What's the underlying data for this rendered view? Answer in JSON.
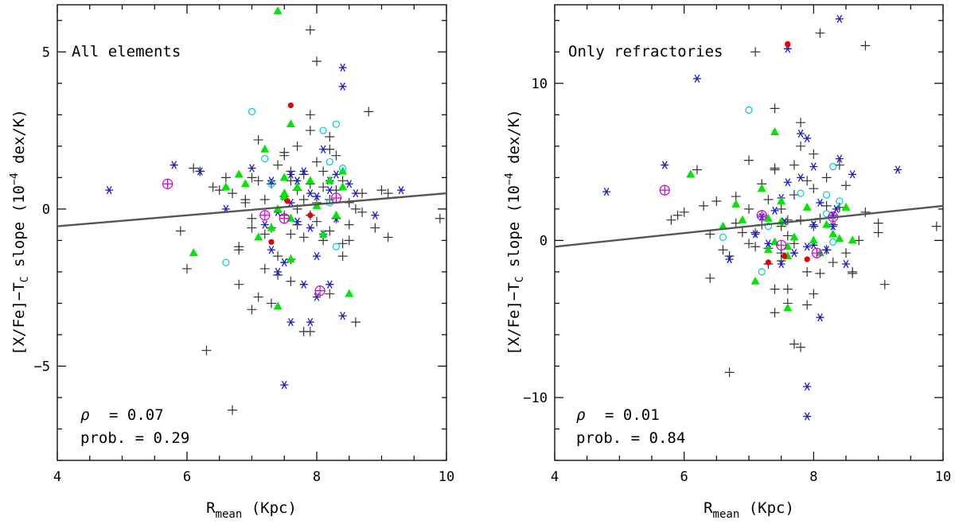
{
  "figure": {
    "ylabel_main": "[X/Fe]−T",
    "ylabel_sub": "C",
    "ylabel_rest": " slope (10",
    "ylabel_sup": "−4",
    "ylabel_end": " dex/K)",
    "xlabel_main": "R",
    "xlabel_sub": "mean",
    "xlabel_end": " (Kpc)"
  },
  "chart_data": [
    {
      "type": "scatter",
      "title": "All elements",
      "xlabel": "R_mean (Kpc)",
      "ylabel": "[X/Fe]-T_C slope (10^-4 dex/K)",
      "xlim": [
        4,
        10
      ],
      "ylim": [
        -8,
        6.5
      ],
      "xticks": [
        4,
        6,
        8,
        10
      ],
      "yticks": [
        -5,
        0,
        5
      ],
      "ytick_labels": [
        "−5",
        "0",
        "5"
      ],
      "rho_label": "ρ",
      "rho_text": "= 0.07",
      "prob_text": "prob. = 0.29",
      "fit_line": {
        "x": [
          4,
          10
        ],
        "y": [
          -0.55,
          0.5
        ]
      },
      "series": [
        {
          "name": "black crosses",
          "marker": "plus",
          "color": "#333333",
          "x": [
            5.9,
            6.1,
            6.2,
            6.4,
            6.5,
            6.6,
            6.7,
            6.8,
            6.9,
            7.0,
            7.0,
            7.1,
            7.1,
            7.2,
            7.2,
            7.3,
            7.3,
            7.4,
            7.4,
            7.5,
            7.5,
            7.5,
            7.6,
            7.6,
            7.6,
            7.7,
            7.7,
            7.7,
            7.8,
            7.8,
            7.8,
            7.9,
            7.9,
            7.9,
            8.0,
            8.0,
            8.0,
            8.1,
            8.1,
            8.1,
            8.2,
            8.2,
            8.2,
            8.3,
            8.3,
            8.4,
            8.4,
            8.5,
            8.5,
            8.6,
            8.7,
            8.8,
            9.0,
            9.1,
            9.9,
            6.3,
            6.7,
            6.8,
            7.0,
            7.3,
            7.6,
            7.8,
            7.9,
            8.6,
            7.9,
            8.0,
            6.0,
            6.8,
            7.1,
            7.2,
            7.5,
            7.7,
            8.2,
            8.4,
            8.5,
            8.7,
            8.9,
            9.1,
            7.4,
            7.9,
            8.3,
            7.0,
            6.9,
            7.6,
            8.2
          ],
          "y": [
            -0.7,
            1.3,
            1.2,
            0.7,
            0.6,
            1.0,
            0.5,
            -1.2,
            0.3,
            -0.3,
            1.0,
            2.2,
            0.9,
            -0.8,
            0.3,
            -0.6,
            0.8,
            1.4,
            -1.5,
            -0.2,
            0.4,
            1.8,
            0.9,
            -0.8,
            1.2,
            0.0,
            0.6,
            -0.5,
            1.1,
            0.3,
            -0.9,
            2.5,
            -0.2,
            0.8,
            1.5,
            -0.4,
            0.2,
            1.2,
            0.7,
            -1.0,
            0.3,
            -0.7,
            1.9,
            0.6,
            -0.3,
            0.9,
            -1.1,
            -0.5,
            0.2,
            0.0,
            0.5,
            3.1,
            0.6,
            -0.9,
            -0.3,
            -4.5,
            -6.4,
            -2.4,
            -3.2,
            -3.0,
            -2.3,
            -3.9,
            -3.9,
            -3.6,
            5.7,
            4.7,
            -1.9,
            -1.3,
            -2.8,
            -1.9,
            1.7,
            2.0,
            2.3,
            -1.5,
            -1.0,
            -0.1,
            -0.6,
            0.5,
            -2.1,
            3.0,
            1.7,
            -0.6,
            0.2,
            -1.6,
            -2.7
          ]
        },
        {
          "name": "blue asterisks",
          "marker": "asterisk",
          "color": "#1a1acc",
          "x": [
            4.8,
            5.8,
            6.2,
            6.6,
            7.0,
            7.2,
            7.3,
            7.4,
            7.4,
            7.5,
            7.5,
            7.6,
            7.6,
            7.7,
            7.7,
            7.8,
            7.8,
            7.9,
            7.9,
            8.0,
            8.0,
            8.1,
            8.1,
            8.2,
            8.2,
            8.3,
            8.3,
            8.4,
            8.4,
            8.5,
            8.6,
            8.9,
            9.3,
            7.5,
            7.6,
            7.9,
            8.4,
            8.0,
            7.3,
            8.2
          ],
          "y": [
            0.6,
            1.4,
            1.2,
            0.0,
            1.3,
            -0.5,
            0.9,
            -2.0,
            -0.1,
            -1.7,
            0.4,
            -3.6,
            1.1,
            -0.4,
            0.9,
            1.2,
            -2.4,
            -0.6,
            -3.6,
            0.4,
            -2.8,
            1.9,
            -0.8,
            -2.4,
            0.6,
            -0.3,
            1.1,
            4.5,
            3.9,
            0.8,
            0.5,
            -0.2,
            0.6,
            -5.6,
            0.2,
            0.5,
            -3.4,
            -1.5,
            -1.3,
            0.9
          ]
        },
        {
          "name": "green triangles",
          "marker": "triangle",
          "color": "#00e600",
          "x": [
            6.1,
            6.6,
            6.8,
            6.9,
            7.1,
            7.2,
            7.3,
            7.4,
            7.4,
            7.5,
            7.5,
            7.6,
            7.6,
            7.6,
            7.7,
            7.9,
            8.0,
            8.1,
            8.2,
            8.3,
            8.4,
            8.4,
            8.5,
            7.5,
            7.4
          ],
          "y": [
            -1.4,
            0.7,
            1.1,
            0.8,
            -0.9,
            1.9,
            -0.6,
            6.3,
            -3.1,
            0.5,
            1.0,
            2.7,
            -0.3,
            -1.6,
            0.7,
            0.9,
            0.1,
            -0.8,
            0.9,
            -0.2,
            1.2,
            0.7,
            -2.7,
            0.4,
            0.0
          ]
        },
        {
          "name": "cyan open circles",
          "marker": "circle-open",
          "color": "#00cccc",
          "x": [
            6.6,
            7.0,
            7.2,
            8.1,
            8.2,
            8.3,
            8.3,
            8.4,
            7.3,
            8.2
          ],
          "y": [
            -1.7,
            3.1,
            1.6,
            2.5,
            1.5,
            2.7,
            -1.2,
            1.3,
            0.8,
            0.2
          ]
        },
        {
          "name": "red dots",
          "marker": "dot",
          "color": "#e60000",
          "x": [
            7.6,
            7.3,
            7.9,
            7.55
          ],
          "y": [
            3.3,
            -1.05,
            -0.2,
            0.25
          ]
        },
        {
          "name": "magenta circled plus",
          "marker": "circle-plus",
          "color": "#cc00cc",
          "x": [
            5.7,
            7.2,
            7.5,
            8.05,
            8.3
          ],
          "y": [
            0.8,
            -0.2,
            -0.3,
            -2.6,
            0.35
          ]
        }
      ]
    },
    {
      "type": "scatter",
      "title": "Only refractories",
      "xlabel": "R_mean (Kpc)",
      "ylabel": "[X/Fe]-T_C slope (10^-4 dex/K)",
      "xlim": [
        4,
        10
      ],
      "ylim": [
        -14,
        15
      ],
      "xticks": [
        4,
        6,
        8,
        10
      ],
      "yticks": [
        -10,
        0,
        10
      ],
      "ytick_labels": [
        "−10",
        "0",
        "10"
      ],
      "rho_label": "ρ",
      "rho_text": "= 0.01",
      "prob_text": "prob. = 0.84",
      "fit_line": {
        "x": [
          4,
          10
        ],
        "y": [
          -0.4,
          2.2
        ]
      },
      "series": [
        {
          "name": "black crosses",
          "marker": "plus",
          "color": "#333333",
          "x": [
            5.8,
            5.9,
            6.0,
            6.2,
            6.3,
            6.4,
            6.5,
            6.6,
            6.7,
            6.8,
            6.9,
            7.0,
            7.0,
            7.1,
            7.1,
            7.2,
            7.2,
            7.3,
            7.3,
            7.4,
            7.4,
            7.5,
            7.5,
            7.5,
            7.6,
            7.6,
            7.7,
            7.7,
            7.8,
            7.8,
            7.9,
            7.9,
            8.0,
            8.0,
            8.1,
            8.1,
            8.2,
            8.2,
            8.3,
            8.3,
            8.4,
            8.4,
            8.5,
            8.5,
            8.6,
            8.7,
            8.8,
            9.0,
            9.1,
            9.9,
            6.4,
            6.7,
            7.0,
            7.4,
            7.4,
            7.6,
            7.8,
            7.9,
            8.0,
            8.1,
            8.8,
            7.1,
            7.4,
            7.8,
            8.0,
            7.5,
            7.6,
            7.7,
            8.2,
            8.6,
            9.0,
            6.8,
            7.3,
            7.7
          ],
          "y": [
            1.3,
            1.6,
            1.8,
            4.5,
            2.2,
            0.4,
            2.5,
            -0.6,
            -8.4,
            1.1,
            0.5,
            5.1,
            2.0,
            12.0,
            -0.4,
            3.6,
            1.0,
            -0.5,
            2.6,
            8.4,
            4.6,
            -1.3,
            2.0,
            0.9,
            -3.1,
            1.3,
            2.9,
            -6.6,
            7.5,
            1.3,
            -2.0,
            3.8,
            0.9,
            5.5,
            13.2,
            1.4,
            -0.6,
            4.0,
            1.0,
            -1.4,
            4.8,
            2.1,
            -0.8,
            3.5,
            -2.0,
            0.0,
            12.4,
            1.1,
            -2.8,
            0.9,
            -2.4,
            -1.0,
            -0.2,
            -4.6,
            -3.1,
            -4.0,
            -6.8,
            -4.1,
            -3.4,
            -2.1,
            1.8,
            0.5,
            4.5,
            6.0,
            3.3,
            -0.8,
            0.3,
            -0.2,
            2.2,
            -2.1,
            0.5,
            2.8,
            -1.5,
            4.8
          ]
        },
        {
          "name": "blue asterisks",
          "marker": "asterisk",
          "color": "#1a1acc",
          "x": [
            4.8,
            5.7,
            6.2,
            6.7,
            7.2,
            7.3,
            7.4,
            7.5,
            7.5,
            7.6,
            7.6,
            7.7,
            7.8,
            7.8,
            7.9,
            7.9,
            8.0,
            8.0,
            8.1,
            8.1,
            8.2,
            8.3,
            8.3,
            8.4,
            8.4,
            8.5,
            8.6,
            9.3,
            7.9,
            7.9,
            7.55,
            7.1,
            8.0,
            8.35
          ],
          "y": [
            3.1,
            4.8,
            10.3,
            -1.2,
            1.5,
            -0.2,
            1.9,
            -1.5,
            2.7,
            3.7,
            12.2,
            -0.8,
            6.8,
            4.0,
            6.5,
            -9.3,
            4.7,
            1.0,
            -4.9,
            2.4,
            -0.6,
            0.9,
            1.6,
            14.1,
            5.2,
            -1.5,
            4.2,
            4.5,
            -11.2,
            -0.4,
            1.2,
            0.4,
            -0.3,
            2.0
          ]
        },
        {
          "name": "green triangles",
          "marker": "triangle",
          "color": "#00e600",
          "x": [
            6.1,
            6.6,
            6.8,
            6.9,
            7.1,
            7.2,
            7.3,
            7.4,
            7.4,
            7.5,
            7.5,
            7.6,
            7.6,
            7.7,
            7.9,
            8.0,
            8.1,
            8.2,
            8.3,
            8.4,
            8.5,
            8.6,
            7.3,
            7.6
          ],
          "y": [
            4.2,
            0.9,
            2.3,
            1.3,
            -2.6,
            3.3,
            1.4,
            6.9,
            -0.1,
            2.5,
            1.2,
            -4.3,
            -1.0,
            0.2,
            2.1,
            0.0,
            -0.8,
            1.0,
            0.4,
            0.1,
            2.1,
            0.0,
            -0.6,
            -0.4
          ]
        },
        {
          "name": "cyan open circles",
          "marker": "circle-open",
          "color": "#00cccc",
          "x": [
            6.6,
            7.0,
            7.2,
            7.8,
            8.2,
            8.3,
            8.4,
            8.3,
            7.3,
            8.2
          ],
          "y": [
            0.2,
            8.3,
            -2.0,
            3.0,
            2.9,
            4.7,
            2.5,
            -0.1,
            0.9,
            1.7
          ]
        },
        {
          "name": "red dots",
          "marker": "dot",
          "color": "#e60000",
          "x": [
            7.6,
            7.3,
            7.9,
            7.55
          ],
          "y": [
            12.5,
            -1.4,
            -1.2,
            -1.0
          ]
        },
        {
          "name": "magenta circled plus",
          "marker": "circle-plus",
          "color": "#cc00cc",
          "x": [
            5.7,
            7.2,
            7.5,
            8.05,
            8.3
          ],
          "y": [
            3.2,
            1.6,
            -0.3,
            -0.8,
            1.5
          ]
        }
      ]
    }
  ]
}
